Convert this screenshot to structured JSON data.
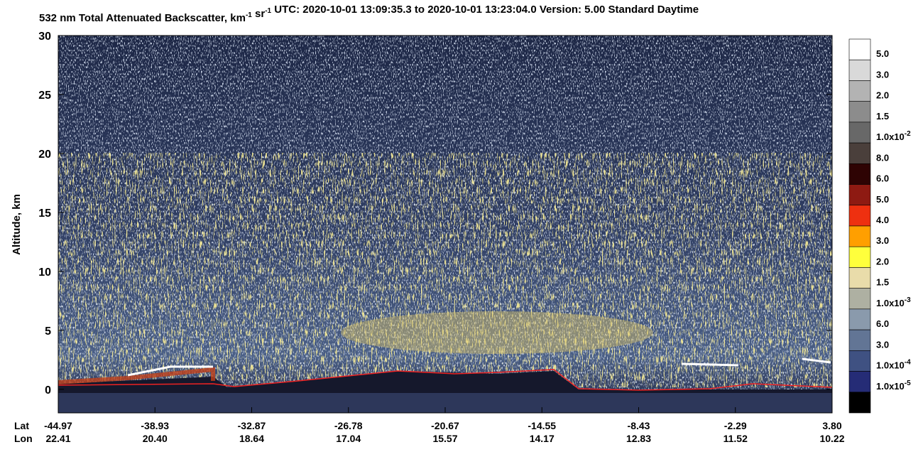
{
  "chart_data": {
    "type": "curtain",
    "title": [
      {
        "text": "532 nm Total Attenuated Backscatter, km"
      },
      {
        "sup": "-1"
      },
      {
        "text": " sr"
      },
      {
        "sup": "-1"
      },
      {
        "text": "    UTC:  2020-10-01 13:09:35.3  to  2020-10-01 13:23:04.0    Version: 5.00  Standard  Daytime"
      }
    ],
    "ylabel": "Altitude, km",
    "ylim": [
      -2,
      30
    ],
    "yticks": [
      0,
      5,
      10,
      15,
      20,
      25,
      30
    ],
    "x_rows": [
      {
        "name": "Lat",
        "labels": [
          "-44.97",
          "-38.93",
          "-32.87",
          "-26.78",
          "-20.67",
          "-14.55",
          "-8.43",
          "-2.29",
          "3.80"
        ]
      },
      {
        "name": "Lon",
        "labels": [
          "22.41",
          "20.40",
          "18.64",
          "17.04",
          "15.57",
          "14.17",
          "12.83",
          "11.52",
          "10.22"
        ]
      }
    ],
    "colorbar": {
      "colors": [
        "#ffffff",
        "#d9d9d9",
        "#b3b3b3",
        "#8c8c8c",
        "#686868",
        "#4a3f3b",
        "#2e0303",
        "#8e1a12",
        "#ee3010",
        "#ff9f00",
        "#ffff3c",
        "#e9dcaa",
        "#aeb0a2",
        "#8a9aac",
        "#627595",
        "#3f5182",
        "#252c76",
        "#000000"
      ],
      "labels": [
        {
          "text": "5.0"
        },
        {
          "text": "3.0"
        },
        {
          "text": "2.0"
        },
        {
          "text": "1.5"
        },
        {
          "text": "1.0x10",
          "sup": "-2"
        },
        {
          "text": "8.0"
        },
        {
          "text": "6.0"
        },
        {
          "text": "5.0"
        },
        {
          "text": "4.0"
        },
        {
          "text": "3.0"
        },
        {
          "text": "2.0"
        },
        {
          "text": "1.5"
        },
        {
          "text": "1.0x10",
          "sup": "-3"
        },
        {
          "text": "6.0"
        },
        {
          "text": "3.0"
        },
        {
          "text": "1.0x10",
          "sup": "-4"
        },
        {
          "text": "1.0x10",
          "sup": "-5"
        }
      ]
    }
  }
}
